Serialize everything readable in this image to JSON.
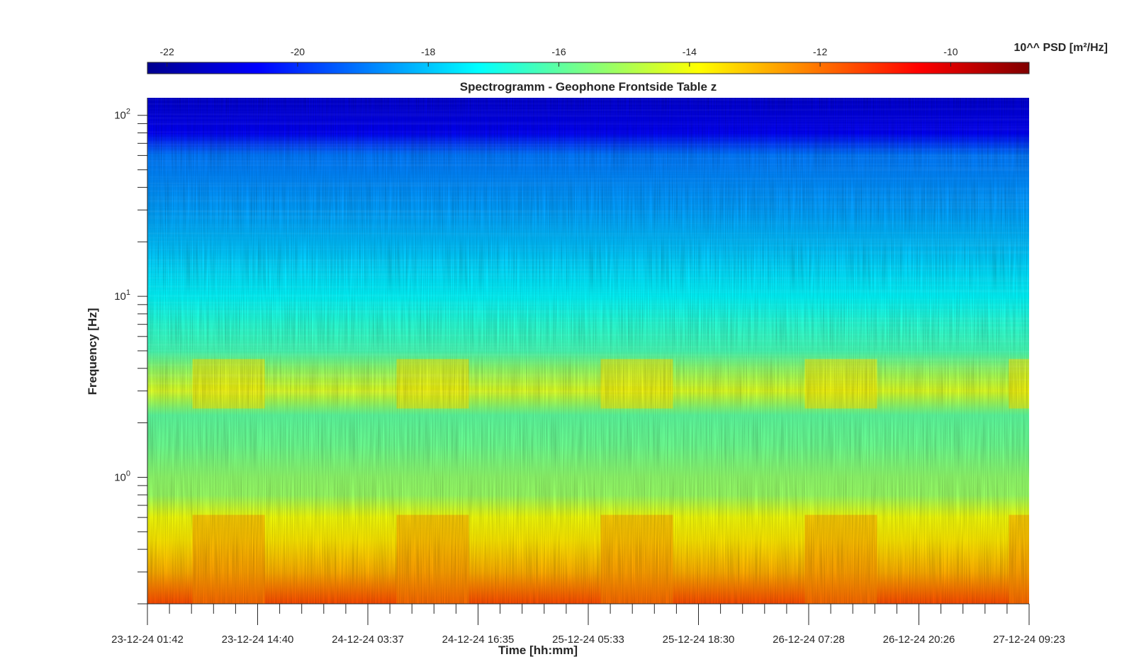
{
  "chart_data": {
    "type": "heatmap",
    "title": "Spectrogramm - Geophone Frontside Table z",
    "xlabel": "Time [hh:mm]",
    "ylabel": "Frequency [Hz]",
    "y_scale": "log",
    "ylim": [
      0.2,
      125
    ],
    "y_ticks": [
      {
        "base": "10",
        "exp": "0",
        "value": 1
      },
      {
        "base": "10",
        "exp": "1",
        "value": 10
      },
      {
        "base": "10",
        "exp": "2",
        "value": 100
      }
    ],
    "x_tick_labels": [
      "23-12-24 01:42",
      "23-12-24 14:40",
      "24-12-24 03:37",
      "24-12-24 16:35",
      "25-12-24 05:33",
      "25-12-24 18:30",
      "26-12-24 07:28",
      "26-12-24 20:26",
      "27-12-24 09:23"
    ],
    "colorbar": {
      "label": "10^^ PSD [m²/Hz]",
      "ticks": [
        "-22",
        "-20",
        "-18",
        "-16",
        "-14",
        "-12",
        "-10"
      ],
      "tick_values": [
        -22,
        -20,
        -18,
        -16,
        -14,
        -12,
        -10
      ],
      "range": [
        -22.3,
        -8.8
      ],
      "colormap": "jet"
    },
    "psd_profile": {
      "description_units": "log10 PSD vs frequency (Hz), typical level",
      "frequency": [
        0.2,
        0.3,
        0.45,
        0.6,
        0.8,
        1.0,
        1.5,
        2.2,
        3.0,
        4.0,
        5.0,
        7.0,
        10.0,
        13.0,
        18.0,
        30.0,
        60.0,
        80.0,
        125.0
      ],
      "log10_psd": [
        -11.5,
        -12.8,
        -13.6,
        -14.0,
        -15.2,
        -15.3,
        -15.8,
        -16.0,
        -14.3,
        -15.3,
        -16.3,
        -16.7,
        -17.3,
        -17.6,
        -18.0,
        -18.5,
        -19.0,
        -20.7,
        -21.2
      ]
    },
    "activity_bands": [
      {
        "start": "23-12-24 07:00",
        "end": "23-12-24 15:30"
      },
      {
        "start": "24-12-24 07:00",
        "end": "24-12-24 15:30"
      },
      {
        "start": "25-12-24 07:00",
        "end": "25-12-24 15:30"
      },
      {
        "start": "26-12-24 07:00",
        "end": "26-12-24 15:30"
      },
      {
        "start": "27-12-24 07:00",
        "end": "27-12-24 09:23"
      }
    ]
  }
}
